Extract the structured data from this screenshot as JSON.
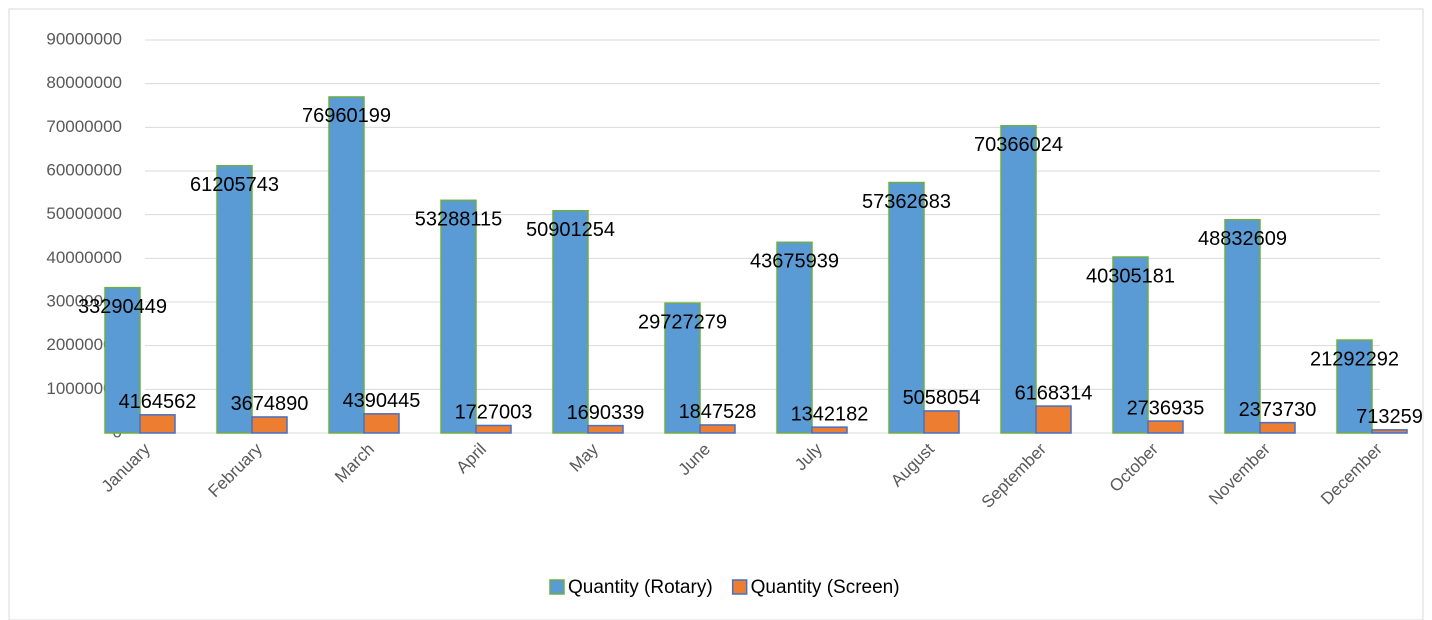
{
  "chart_data": {
    "type": "bar",
    "categories": [
      "January",
      "February",
      "March",
      "April",
      "May",
      "June",
      "July",
      "August",
      "September",
      "October",
      "November",
      "December"
    ],
    "series": [
      {
        "name": "Quantity (Rotary)",
        "color": "#5b9bd5",
        "values": [
          33290449,
          61205743,
          76960199,
          53288115,
          50901254,
          29727279,
          43675939,
          57362683,
          70366024,
          40305181,
          48832609,
          21292292
        ]
      },
      {
        "name": "Quantity (Screen)",
        "color": "#ed7d31",
        "values": [
          4164562,
          3674890,
          4390445,
          1727003,
          1690339,
          1847528,
          1342182,
          5058054,
          6168314,
          2736935,
          2373730,
          713259
        ]
      }
    ],
    "ylim": [
      0,
      90000000
    ],
    "yticks": [
      0,
      10000000,
      20000000,
      30000000,
      40000000,
      50000000,
      60000000,
      70000000,
      80000000,
      90000000
    ],
    "grid": true,
    "legend": "bottom"
  }
}
